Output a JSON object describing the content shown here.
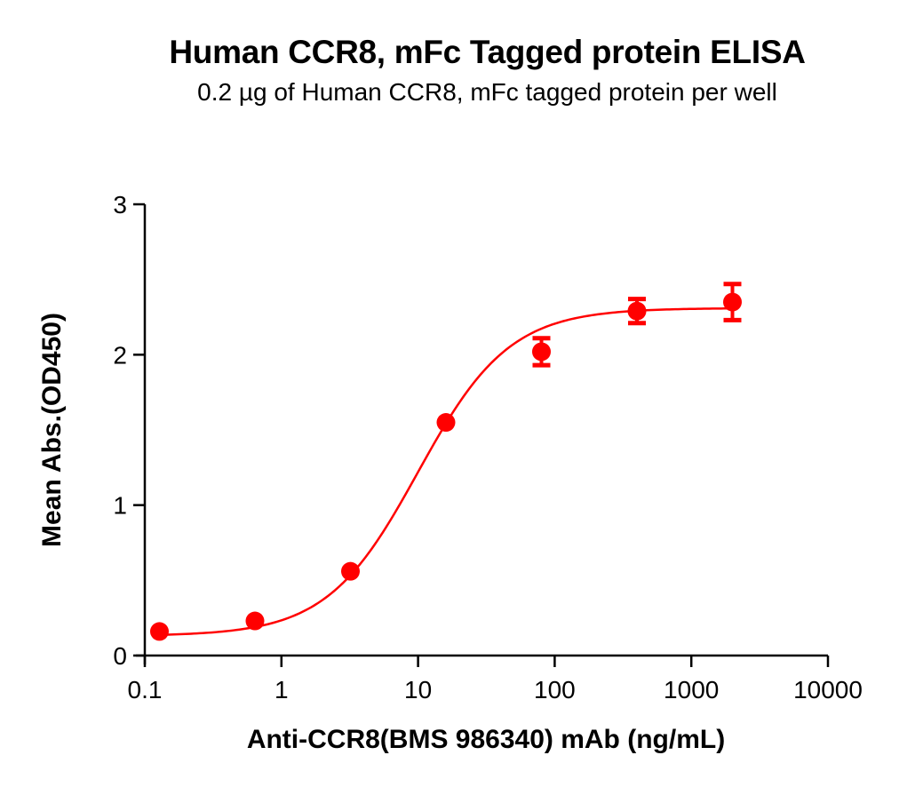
{
  "chart_data": {
    "type": "scatter",
    "title": "Human CCR8, mFc Tagged protein ELISA",
    "subtitle": "0.2 µg of Human CCR8, mFc tagged protein per well",
    "xlabel": "Anti-CCR8(BMS 986340) mAb (ng/mL)",
    "ylabel": "Mean Abs.(OD450)",
    "xscale": "log",
    "xlim": [
      0.1,
      10000
    ],
    "ylim": [
      0,
      3
    ],
    "xticks": [
      0.1,
      1,
      10,
      100,
      1000,
      10000
    ],
    "xtick_labels": [
      "0.1",
      "1",
      "10",
      "100",
      "1000",
      "10000"
    ],
    "yticks": [
      0,
      1,
      2,
      3
    ],
    "ytick_labels": [
      "0",
      "1",
      "2",
      "3"
    ],
    "grid": false,
    "legend": null,
    "series": [
      {
        "name": "Human CCR8, mFc",
        "color": "#ff0000",
        "x": [
          0.128,
          0.64,
          3.2,
          16,
          80,
          400,
          2000
        ],
        "y": [
          0.16,
          0.23,
          0.56,
          1.55,
          2.02,
          2.29,
          2.35
        ],
        "error": [
          0.01,
          0.01,
          0.01,
          0.02,
          0.09,
          0.08,
          0.12
        ]
      }
    ],
    "fit": {
      "model": "4PL",
      "bottom": 0.13,
      "top": 2.31,
      "ec50": 10,
      "hill": 1.3,
      "x_range": [
        0.128,
        2000
      ],
      "color": "#ff0000"
    }
  }
}
